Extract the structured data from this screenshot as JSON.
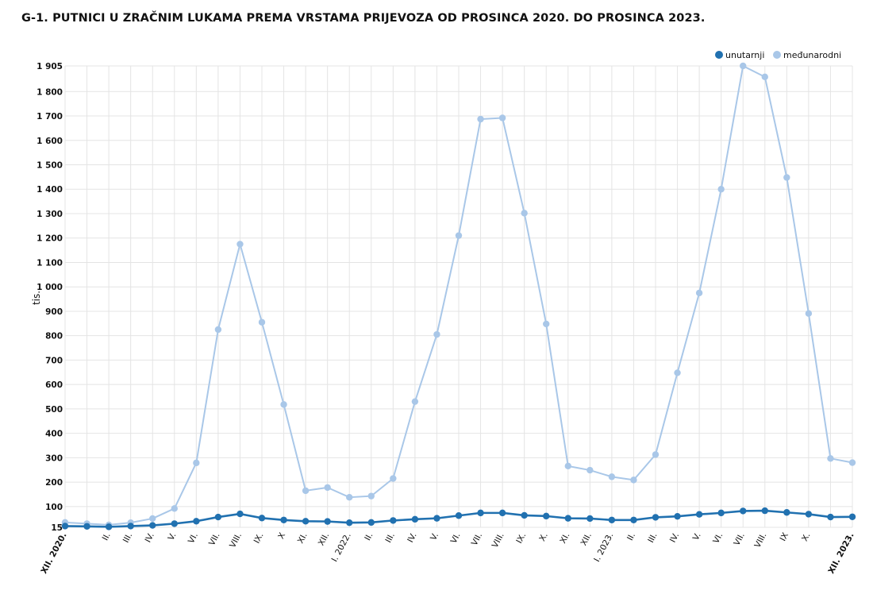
{
  "chart_title": "G-1. PUTNICI U ZRAČNIM LUKAMA PREMA VRSTAMA PRIJEVOZA OD PROSINCA 2020. DO PROSINCA 2023.",
  "colors": {
    "domestic": "#2171b0",
    "international": "#a9c7e8",
    "grid": "#e4e4e4"
  },
  "chart_data": {
    "type": "line",
    "title": "G-1. PUTNICI U ZRAČNIM LUKAMA PREMA VRSTAMA PRIJEVOZA OD PROSINCA 2020. DO PROSINCA 2023.",
    "ylabel": "tis.",
    "xlabel": "",
    "ylim": [
      15,
      1905
    ],
    "yticks": [
      15,
      100,
      200,
      300,
      400,
      500,
      600,
      700,
      800,
      900,
      1000,
      1100,
      1200,
      1300,
      1400,
      1500,
      1600,
      1700,
      1800,
      1905
    ],
    "ytick_labels": [
      "15",
      "100",
      "200",
      "300",
      "400",
      "500",
      "600",
      "700",
      "800",
      "900",
      "1 000",
      "1 100",
      "1 200",
      "1 300",
      "1 400",
      "1 500",
      "1 600",
      "1 700",
      "1 800",
      "1 905"
    ],
    "grid": true,
    "legend_position": "top-right",
    "x": [
      "XII. 2020.",
      "",
      "II.",
      "III.",
      "IV.",
      "V.",
      "VI.",
      "VII.",
      "VIII.",
      "IX.",
      "X",
      "XI.",
      "XII.",
      "I. 2022.",
      "II.",
      "III.",
      "IV.",
      "V.",
      "VI.",
      "VII.",
      "VIII.",
      "IX.",
      "X.",
      "XI.",
      "XII.",
      "I. 2023.",
      "II.",
      "III.",
      "IV.",
      "V.",
      "VI.",
      "VII.",
      "VIII.",
      "IX",
      "X.",
      "",
      "XII. 2023."
    ],
    "bold_x_labels": [
      "XII. 2020.",
      "XII. 2023."
    ],
    "series": [
      {
        "name": "unutarnji",
        "color": "#2171b0",
        "values": [
          20,
          19,
          17,
          20,
          23,
          30,
          40,
          57,
          70,
          53,
          45,
          40,
          39,
          34,
          35,
          43,
          48,
          52,
          63,
          74,
          74,
          64,
          61,
          52,
          51,
          45,
          45,
          56,
          60,
          68,
          74,
          82,
          83,
          76,
          69,
          57,
          58
        ]
      },
      {
        "name": "međunarodni",
        "color": "#a9c7e8",
        "values": [
          35,
          30,
          25,
          34,
          51,
          92,
          279,
          825,
          1175,
          855,
          518,
          165,
          178,
          138,
          143,
          215,
          530,
          805,
          1210,
          1687,
          1692,
          1302,
          848,
          266,
          249,
          222,
          209,
          313,
          648,
          975,
          1400,
          1905,
          1860,
          1448,
          891,
          297,
          280
        ]
      }
    ]
  }
}
